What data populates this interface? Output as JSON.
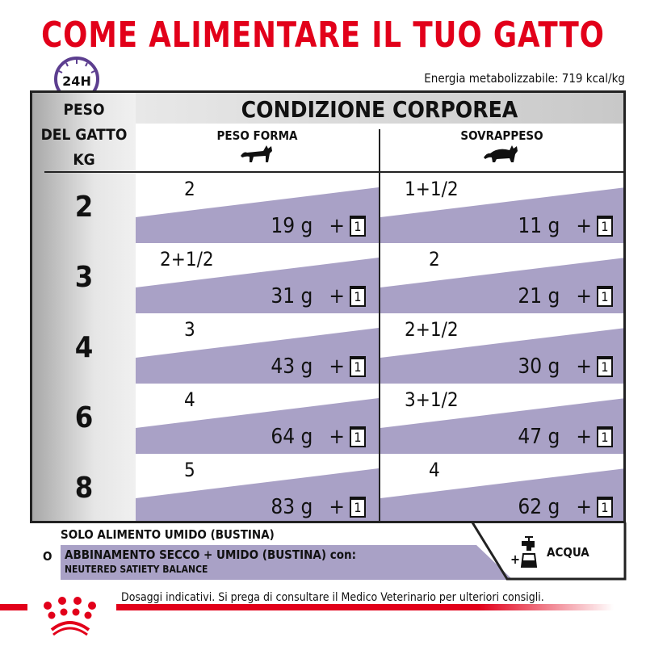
{
  "title": "COME ALIMENTARE IL TUO GATTO",
  "clock_label": "24H",
  "energy": "Energia metabolizzabile: 719 kcal/kg",
  "table": {
    "weight_header": [
      "PESO",
      "DEL GATTO",
      "KG"
    ],
    "condition_header": "CONDIZIONE CORPOREA",
    "columns": [
      "PESO FORMA",
      "SOVRAPPESO"
    ],
    "plus": "+",
    "pouch": "1",
    "rows": [
      {
        "kg": "2",
        "forma": {
          "meals": "2",
          "grams": "19 g"
        },
        "sovra": {
          "meals": "1+1/2",
          "grams": "11 g"
        }
      },
      {
        "kg": "3",
        "forma": {
          "meals": "2+1/2",
          "grams": "31 g"
        },
        "sovra": {
          "meals": "2",
          "grams": "21 g"
        }
      },
      {
        "kg": "4",
        "forma": {
          "meals": "3",
          "grams": "43 g"
        },
        "sovra": {
          "meals": "2+1/2",
          "grams": "30 g"
        }
      },
      {
        "kg": "6",
        "forma": {
          "meals": "4",
          "grams": "64 g"
        },
        "sovra": {
          "meals": "3+1/2",
          "grams": "47 g"
        }
      },
      {
        "kg": "8",
        "forma": {
          "meals": "5",
          "grams": "83 g"
        },
        "sovra": {
          "meals": "4",
          "grams": "62 g"
        }
      }
    ]
  },
  "footer": {
    "solo": "SOLO ALIMENTO UMIDO (BUSTINA)",
    "or": "O",
    "abbinamento": "ABBINAMENTO SECCO + UMIDO (BUSTINA) con:",
    "product": "NEUTERED SATIETY BALANCE",
    "water": "ACQUA",
    "water_plus": "+",
    "disclaimer": "Dosaggi indicativi. Si prega di consultare il Medico Veterinario per ulteriori consigli."
  },
  "colors": {
    "brand_red": "#e2001a",
    "purple": "#a9a1c6",
    "clock": "#5c3e8f"
  }
}
